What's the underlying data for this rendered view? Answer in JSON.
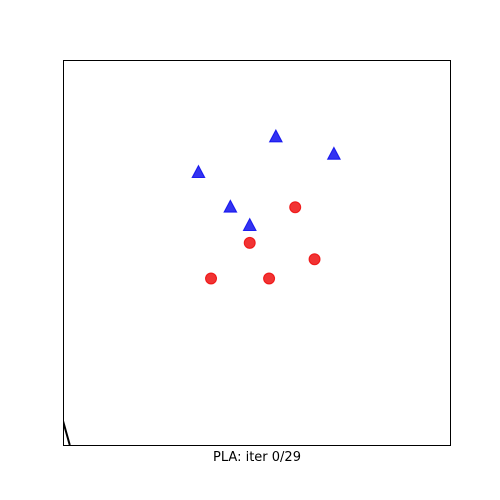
{
  "chart_data": {
    "type": "scatter",
    "title": "",
    "xlabel": "PLA: iter 0/29",
    "ylabel": "",
    "xlim": [
      -2,
      2
    ],
    "ylim": [
      -2,
      2
    ],
    "grid": false,
    "legend": "none",
    "series": [
      {
        "marker": "triangle",
        "color": "#0000ee",
        "points": [
          {
            "x": 0.2,
            "y": 1.2
          },
          {
            "x": 0.8,
            "y": 1.02
          },
          {
            "x": -0.6,
            "y": 0.83
          },
          {
            "x": -0.27,
            "y": 0.47
          },
          {
            "x": -0.07,
            "y": 0.28
          }
        ]
      },
      {
        "marker": "circle",
        "color": "#ee0000",
        "points": [
          {
            "x": 0.4,
            "y": 0.47
          },
          {
            "x": -0.07,
            "y": 0.1
          },
          {
            "x": 0.6,
            "y": -0.07
          },
          {
            "x": -0.47,
            "y": -0.27
          },
          {
            "x": 0.13,
            "y": -0.27
          }
        ]
      }
    ],
    "decision_line": [
      {
        "x": -2.0,
        "y": -1.75
      },
      {
        "x": -1.93,
        "y": -2.0
      }
    ]
  }
}
